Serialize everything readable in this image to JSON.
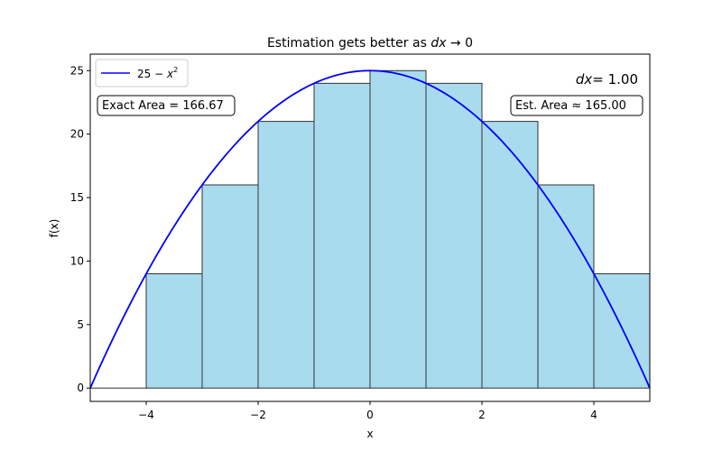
{
  "chart_data": {
    "type": "bar",
    "title": "Estimation gets better as dx → 0",
    "title_parts": {
      "text": "Estimation gets better as ",
      "math": "dx",
      "arrow": " → 0"
    },
    "xlabel": "x",
    "ylabel": "f(x)",
    "xlim": [
      -5,
      5
    ],
    "ylim": [
      -1.05,
      26.3
    ],
    "xticks": [
      -4,
      -2,
      0,
      2,
      4
    ],
    "xtick_labels": [
      "−4",
      "−2",
      "0",
      "2",
      "4"
    ],
    "yticks": [
      0,
      5,
      10,
      15,
      20,
      25
    ],
    "ytick_labels": [
      "0",
      "5",
      "10",
      "15",
      "20",
      "25"
    ],
    "grid": false,
    "bar_width": 1,
    "bars": [
      {
        "left": -5,
        "height": 0
      },
      {
        "left": -4,
        "height": 9
      },
      {
        "left": -3,
        "height": 16
      },
      {
        "left": -2,
        "height": 21
      },
      {
        "left": -1,
        "height": 24
      },
      {
        "left": 0,
        "height": 25
      },
      {
        "left": 1,
        "height": 24
      },
      {
        "left": 2,
        "height": 21
      },
      {
        "left": 3,
        "height": 16
      },
      {
        "left": 4,
        "height": 9
      }
    ],
    "curve": {
      "label": "25 − x²",
      "label_base": "25 − ",
      "label_var": "x",
      "label_exp": "2",
      "color": "#0000ff",
      "x_range": [
        -5,
        5
      ]
    },
    "bar_fill": "#a9dbef",
    "bar_edge": "#333333",
    "legend": {
      "position": "top-left"
    },
    "annotations": {
      "exact_area": "Exact Area = 166.67",
      "est_area": "Est. Area ≈ 165.00",
      "dx_label": "dx = 1.00",
      "dx_var": "dx",
      "dx_value": "= 1.00"
    }
  }
}
